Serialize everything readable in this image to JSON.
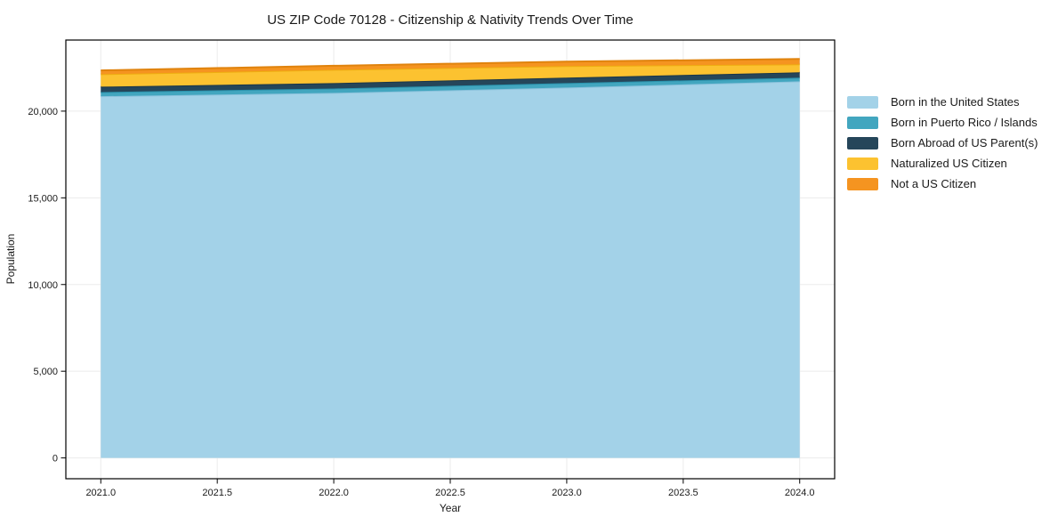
{
  "title": "US ZIP Code 70128 - Citizenship & Nativity Trends Over Time",
  "chart_data": {
    "type": "area",
    "stacked": true,
    "title": "US ZIP Code 70128 - Citizenship & Nativity Trends Over Time",
    "xlabel": "Year",
    "ylabel": "Population",
    "x": [
      2021,
      2022,
      2023,
      2024
    ],
    "series": [
      {
        "name": "Born in the United States",
        "color": "#a3d2e8",
        "edge": "#8bc2dc",
        "values": [
          20860,
          21050,
          21360,
          21720
        ]
      },
      {
        "name": "Born in Puerto Rico / Islands",
        "color": "#42a6bf",
        "edge": "#2a93ad",
        "values": [
          240,
          255,
          260,
          210
        ]
      },
      {
        "name": "Born Abroad of US Parent(s)",
        "color": "#25465a",
        "edge": "#1b3648",
        "values": [
          310,
          310,
          310,
          310
        ]
      },
      {
        "name": "Naturalized US Citizen",
        "color": "#fcc230",
        "edge": "#eead10",
        "values": [
          720,
          770,
          670,
          460
        ]
      },
      {
        "name": "Not a US Citizen",
        "color": "#f59420",
        "edge": "#e0830d",
        "values": [
          220,
          230,
          255,
          310
        ]
      }
    ],
    "totals": [
      22350,
      22615,
      22855,
      23010
    ],
    "xlim": [
      2020.85,
      2024.15
    ],
    "ylim": [
      -1200,
      24100
    ],
    "xticks": [
      {
        "v": 2021.0,
        "label": "2021.0"
      },
      {
        "v": 2021.5,
        "label": "2021.5"
      },
      {
        "v": 2022.0,
        "label": "2022.0"
      },
      {
        "v": 2022.5,
        "label": "2022.5"
      },
      {
        "v": 2023.0,
        "label": "2023.0"
      },
      {
        "v": 2023.5,
        "label": "2023.5"
      },
      {
        "v": 2024.0,
        "label": "2024.0"
      }
    ],
    "yticks": [
      {
        "v": 0,
        "label": "0"
      },
      {
        "v": 5000,
        "label": "5,000"
      },
      {
        "v": 10000,
        "label": "10,000"
      },
      {
        "v": 15000,
        "label": "15,000"
      },
      {
        "v": 20000,
        "label": "20,000"
      }
    ],
    "grid": true,
    "legend_position": "right",
    "colors": {
      "background": "#ffffff",
      "grid": "#ebebeb",
      "spine": "#000000",
      "text": "#1a1a1a"
    }
  }
}
